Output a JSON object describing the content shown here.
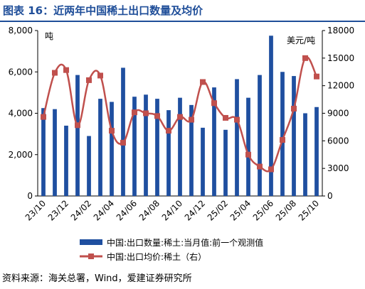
{
  "figure": {
    "title": "图表 16：近两年中国稀土出口数量及均价",
    "source": "资料来源：海关总署，Wind，爱建证券研究所"
  },
  "colors": {
    "accent": "#1F4E99",
    "bar": "#1F4FA0",
    "line": "#C0504D"
  },
  "chart_data": {
    "type": "bar+line",
    "y_left": {
      "unit": "吨",
      "range": [
        0,
        8000
      ],
      "ticks": [
        "0",
        "2,000",
        "4,000",
        "6,000",
        "8,000"
      ]
    },
    "y_right": {
      "unit": "美元/吨",
      "range": [
        0,
        18000
      ],
      "ticks": [
        "0",
        "3000",
        "6000",
        "9000",
        "12000",
        "15000",
        "18000"
      ]
    },
    "x_tick_labels": [
      "23/10",
      "23/12",
      "24/02",
      "24/04",
      "24/06",
      "24/08",
      "24/10",
      "24/12",
      "25/02",
      "25/04",
      "25/06",
      "25/08",
      "25/10"
    ],
    "categories": [
      "23/10",
      "23/11",
      "23/12",
      "24/01",
      "24/02",
      "24/03",
      "24/04",
      "24/05",
      "24/06",
      "24/07",
      "24/08",
      "24/09",
      "24/10",
      "24/11",
      "24/12",
      "25/01",
      "25/02",
      "25/03",
      "25/04",
      "25/05",
      "25/06",
      "25/07",
      "25/08",
      "25/09",
      "25/10"
    ],
    "series": [
      {
        "name": "中国:出口数量:稀土:当月值:前一个观测值",
        "type": "bar",
        "axis": "left",
        "values": [
          4250,
          4200,
          3400,
          5850,
          2900,
          4700,
          4550,
          6200,
          4800,
          4900,
          4700,
          4150,
          4750,
          4400,
          3300,
          5250,
          3200,
          5650,
          4750,
          5850,
          7750,
          6000,
          5800,
          4000,
          4300
        ]
      },
      {
        "name": "中国:出口均价:稀土（右）",
        "type": "line",
        "axis": "right",
        "values": [
          8600,
          13400,
          13700,
          7700,
          12600,
          13100,
          7100,
          5800,
          9100,
          9000,
          8700,
          7100,
          8600,
          8300,
          12400,
          10100,
          8500,
          8300,
          4500,
          3200,
          2900,
          6100,
          9500,
          15000,
          13000
        ]
      }
    ]
  }
}
